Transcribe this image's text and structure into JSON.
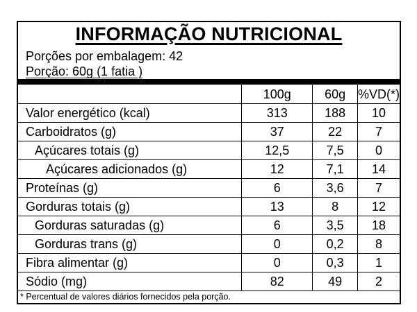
{
  "title": "INFORMAÇÃO NUTRICIONAL",
  "servings_per_package": "Porções por embalagem: 42",
  "serving_size": "Porção: 60g (1 fatia )",
  "columns": [
    "100g",
    "60g",
    "%VD(*)"
  ],
  "rows": [
    {
      "name": "Valor energético (kcal)",
      "v100": "313",
      "v60": "188",
      "vd": "10"
    },
    {
      "name": "Carboidratos (g)",
      "v100": "37",
      "v60": "22",
      "vd": "7"
    },
    {
      "name": "Açúcares totais (g)",
      "v100": "12,5",
      "v60": "7,5",
      "vd": "0"
    },
    {
      "name": "Açúcares adicionados (g)",
      "v100": "12",
      "v60": "7,1",
      "vd": "14"
    },
    {
      "name": "Proteínas (g)",
      "v100": "6",
      "v60": "3,6",
      "vd": "7"
    },
    {
      "name": "Gorduras totais (g)",
      "v100": "13",
      "v60": "8",
      "vd": "12"
    },
    {
      "name": "Gorduras saturadas (g)",
      "v100": "6",
      "v60": "3,5",
      "vd": "18"
    },
    {
      "name": "Gorduras trans (g)",
      "v100": "0",
      "v60": "0,2",
      "vd": "8"
    },
    {
      "name": "Fibra alimentar (g)",
      "v100": "0",
      "v60": "0,3",
      "vd": "1"
    },
    {
      "name": "Sódio (mg)",
      "v100": "82",
      "v60": "49",
      "vd": "2"
    }
  ],
  "footnote": "* Percentual de valores diários fornecidos pela porção."
}
